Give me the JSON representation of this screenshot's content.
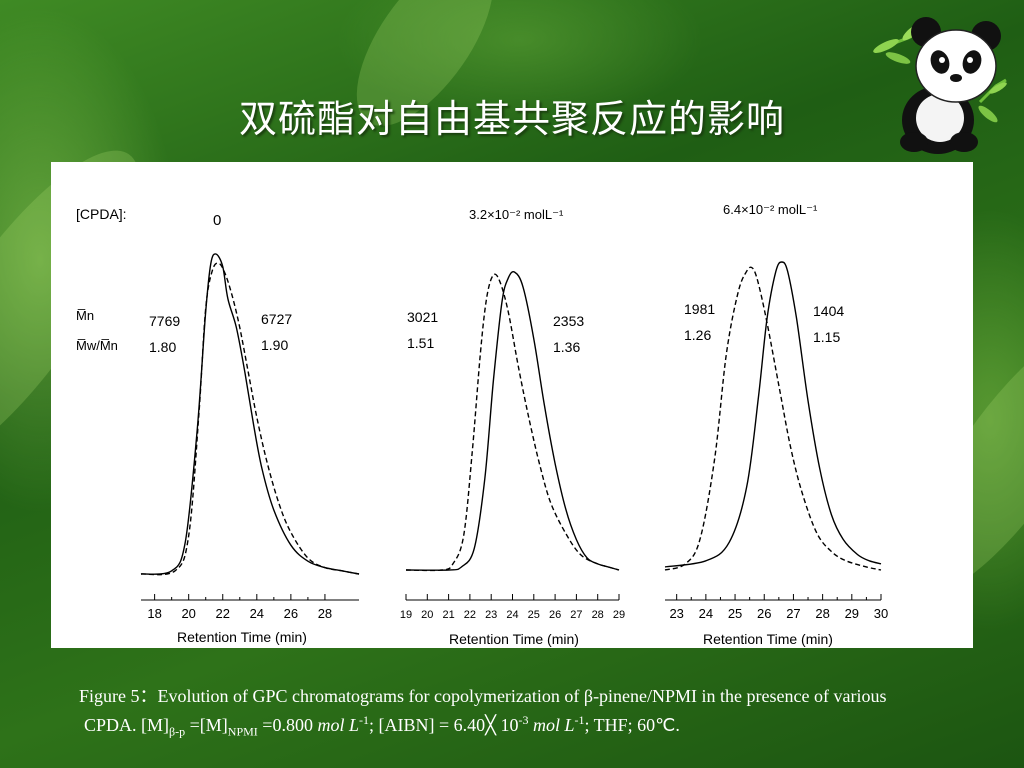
{
  "slide": {
    "title": "双硫酯对自由基共聚反应的影响"
  },
  "figure": {
    "row_label_group": "[CPDA]:",
    "row_label_mn": "M̅n",
    "row_label_pdi": "M̅w/M̅n",
    "panels": [
      {
        "concentration_label": "0",
        "left_mn": "7769",
        "left_pdi": "1.80",
        "right_mn": "6727",
        "right_pdi": "1.90",
        "xlabel": "Retention Time (min)",
        "ticks": [
          "18",
          "20",
          "22",
          "24",
          "26",
          "28"
        ]
      },
      {
        "concentration_label": "3.2×10⁻² molL⁻¹",
        "left_mn": "3021",
        "left_pdi": "1.51",
        "right_mn": "2353",
        "right_pdi": "1.36",
        "xlabel": "Retention Time (min)",
        "ticks": [
          "19",
          "20",
          "21",
          "22",
          "23",
          "24",
          "25",
          "26",
          "27",
          "28",
          "29"
        ]
      },
      {
        "concentration_label": "6.4×10⁻² molL⁻¹",
        "left_mn": "1981",
        "left_pdi": "1.26",
        "right_mn": "1404",
        "right_pdi": "1.15",
        "xlabel": "Retention Time (min)",
        "ticks": [
          "23",
          "24",
          "25",
          "26",
          "27",
          "28",
          "29",
          "30"
        ]
      }
    ]
  },
  "caption": {
    "line1": "Figure 5：Evolution of GPC chromatograms for copolymerization of β-pinene/NPMI in the presence of various",
    "line2_a": "CPDA.  [M]",
    "line2_sub1": "β-p",
    "line2_b": " =[M]",
    "line2_sub2": "NPMI",
    "line2_c": " =0.800 ",
    "unit_mol": "mol L",
    "sup_neg1": "-1",
    "line2_d": "; [AIBN] = 6.40╳ 10",
    "sup_neg3": "-3",
    "line2_e": " ",
    "line2_f": "; THF; 60℃."
  },
  "chart_data": [
    {
      "type": "line",
      "xlabel": "Retention Time (min)",
      "xlim": [
        17.2,
        30.0
      ],
      "x_ticks": [
        18,
        20,
        22,
        24,
        26,
        28
      ],
      "series": [
        {
          "style": "solid",
          "x": [
            17.2,
            19.0,
            19.8,
            20.5,
            21.0,
            21.3,
            21.6,
            22.0,
            22.3,
            22.8,
            23.3,
            23.8,
            24.3,
            25.0,
            26.0,
            27.0,
            28.0,
            29.0,
            30.0
          ],
          "y": [
            0.0,
            0.01,
            0.1,
            0.45,
            0.82,
            0.97,
            1.0,
            0.96,
            0.86,
            0.77,
            0.63,
            0.47,
            0.33,
            0.2,
            0.09,
            0.04,
            0.02,
            0.01,
            0.0
          ]
        },
        {
          "style": "dashed",
          "x": [
            17.2,
            19.2,
            20.0,
            20.6,
            21.0,
            21.4,
            21.8,
            22.2,
            22.6,
            23.0,
            23.5,
            24.0,
            24.6,
            25.3,
            26.0,
            27.0,
            28.0,
            29.0,
            30.0
          ],
          "y": [
            0.0,
            0.01,
            0.12,
            0.5,
            0.83,
            0.95,
            0.97,
            0.93,
            0.86,
            0.77,
            0.63,
            0.49,
            0.35,
            0.22,
            0.13,
            0.05,
            0.02,
            0.01,
            0.0
          ]
        }
      ]
    },
    {
      "type": "line",
      "xlabel": "Retention Time (min)",
      "xlim": [
        19.0,
        29.0
      ],
      "x_ticks": [
        19,
        20,
        21,
        22,
        23,
        24,
        25,
        26,
        27,
        28,
        29
      ],
      "series": [
        {
          "style": "solid",
          "x": [
            19.0,
            21.0,
            21.6,
            22.2,
            22.7,
            23.1,
            23.5,
            23.8,
            24.1,
            24.5,
            25.0,
            25.5,
            26.0,
            26.5,
            27.0,
            27.5,
            28.0,
            28.5,
            29.0
          ],
          "y": [
            0.0,
            0.0,
            0.01,
            0.07,
            0.3,
            0.62,
            0.88,
            0.96,
            0.98,
            0.93,
            0.76,
            0.54,
            0.35,
            0.2,
            0.1,
            0.04,
            0.02,
            0.01,
            0.0
          ]
        },
        {
          "style": "dashed",
          "x": [
            19.0,
            20.7,
            21.2,
            21.7,
            22.1,
            22.5,
            22.8,
            23.1,
            23.4,
            23.8,
            24.3,
            24.8,
            25.3,
            25.8,
            26.5,
            27.2,
            28.0,
            28.5,
            29.0
          ],
          "y": [
            0.0,
            0.0,
            0.02,
            0.11,
            0.38,
            0.72,
            0.9,
            0.97,
            0.95,
            0.85,
            0.66,
            0.49,
            0.34,
            0.22,
            0.12,
            0.05,
            0.02,
            0.01,
            0.0
          ]
        }
      ]
    },
    {
      "type": "line",
      "xlabel": "Retention Time (min)",
      "xlim": [
        22.6,
        30.0
      ],
      "x_ticks": [
        23,
        24,
        25,
        26,
        27,
        28,
        29,
        30
      ],
      "series": [
        {
          "style": "solid",
          "x": [
            22.6,
            24.0,
            24.8,
            25.4,
            25.8,
            26.1,
            26.4,
            26.6,
            26.8,
            27.1,
            27.5,
            27.9,
            28.3,
            28.7,
            29.2,
            29.6,
            30.0
          ],
          "y": [
            0.01,
            0.03,
            0.09,
            0.27,
            0.56,
            0.82,
            0.97,
            1.0,
            0.97,
            0.82,
            0.55,
            0.33,
            0.18,
            0.1,
            0.05,
            0.03,
            0.02
          ]
        },
        {
          "style": "dashed",
          "x": [
            22.6,
            23.3,
            23.8,
            24.3,
            24.7,
            25.1,
            25.4,
            25.6,
            25.8,
            26.1,
            26.5,
            26.9,
            27.3,
            27.8,
            28.3,
            28.8,
            29.5,
            30.0
          ],
          "y": [
            0.0,
            0.02,
            0.1,
            0.36,
            0.7,
            0.9,
            0.97,
            0.98,
            0.93,
            0.8,
            0.6,
            0.4,
            0.25,
            0.12,
            0.06,
            0.03,
            0.01,
            0.0
          ]
        }
      ]
    }
  ]
}
